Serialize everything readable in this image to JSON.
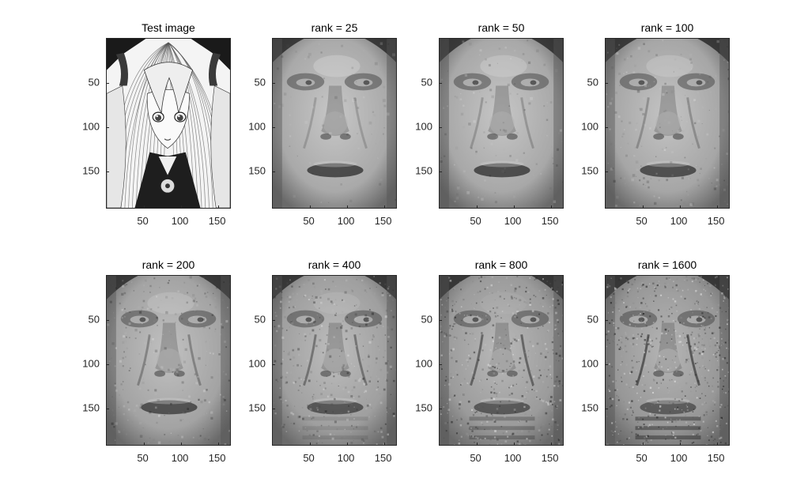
{
  "figure": {
    "panels": [
      {
        "title": "Test image",
        "kind": "anime"
      },
      {
        "title": "rank = 25",
        "kind": "face",
        "detail": 0.05
      },
      {
        "title": "rank = 50",
        "kind": "face",
        "detail": 0.12
      },
      {
        "title": "rank = 100",
        "kind": "face",
        "detail": 0.22
      },
      {
        "title": "rank = 200",
        "kind": "face",
        "detail": 0.35
      },
      {
        "title": "rank = 400",
        "kind": "face",
        "detail": 0.55
      },
      {
        "title": "rank = 800",
        "kind": "face",
        "detail": 0.75
      },
      {
        "title": "rank = 1600",
        "kind": "face",
        "detail": 0.95
      }
    ],
    "x_ticks": [
      "50",
      "100",
      "150"
    ],
    "y_ticks": [
      "50",
      "100",
      "150"
    ],
    "x_tick_values": [
      50,
      100,
      150
    ],
    "y_tick_values": [
      50,
      100,
      150
    ],
    "x_range": [
      0.5,
      168.5
    ],
    "y_range": [
      0.5,
      192.5
    ],
    "colormap": "gray"
  }
}
